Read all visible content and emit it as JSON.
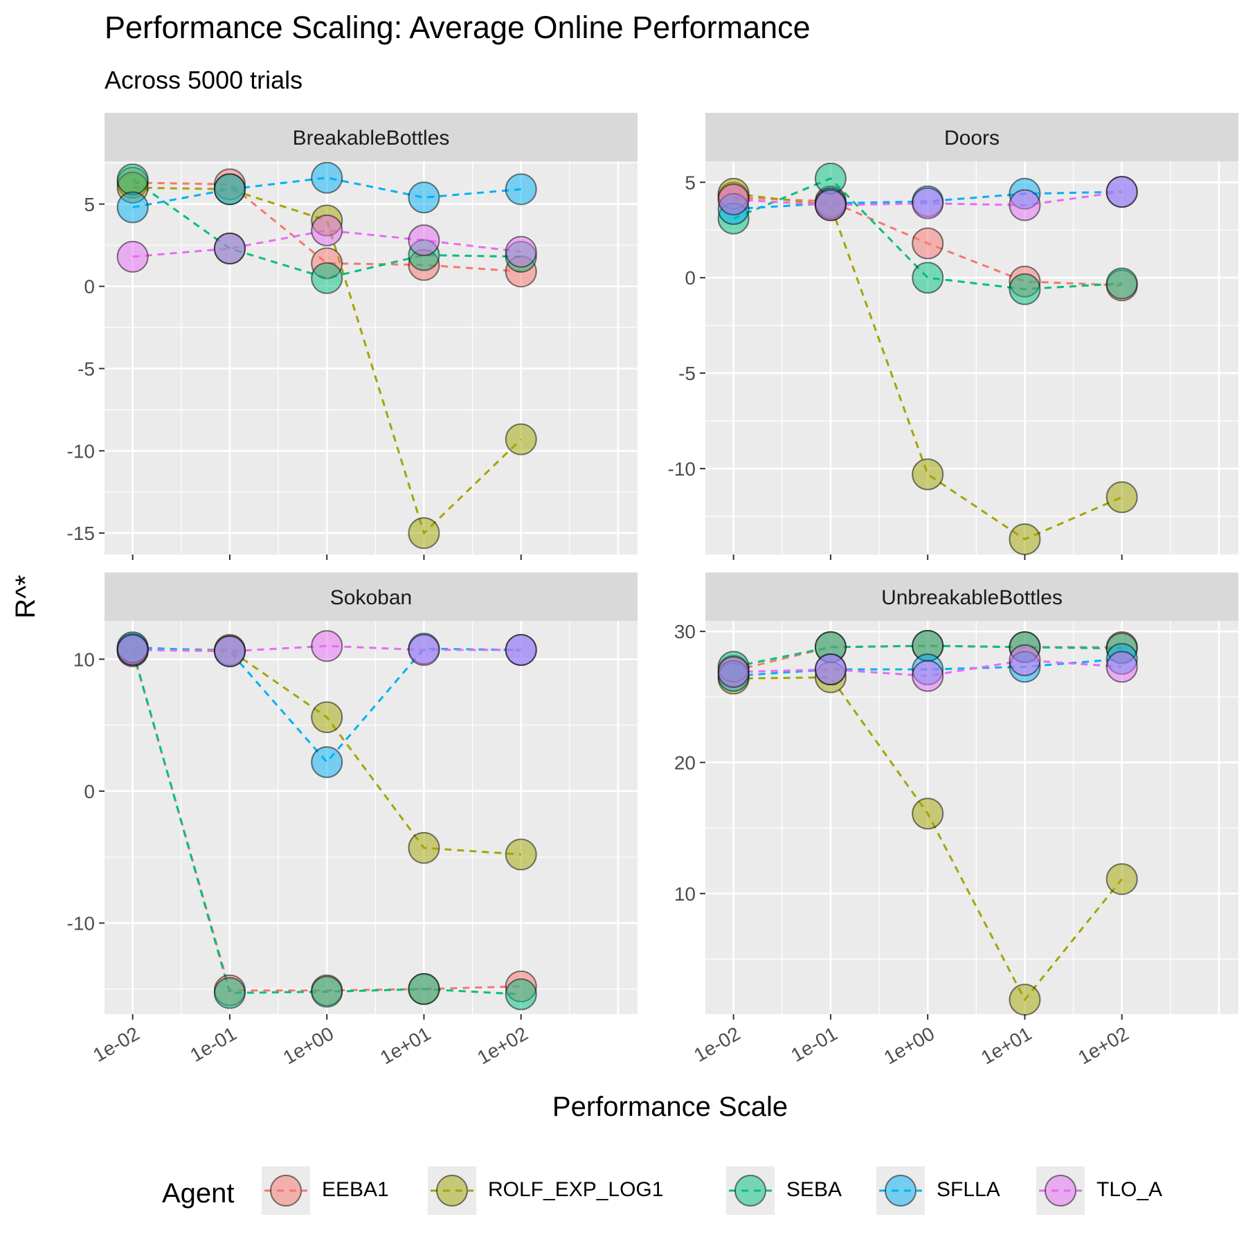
{
  "chart_data": {
    "type": "line",
    "title": "Performance Scaling: Average Online Performance",
    "subtitle": "Across 5000 trials",
    "xlabel": "Performance Scale",
    "ylabel": "R^*",
    "x_scale": "log10",
    "x": [
      0.01,
      0.1,
      1,
      10,
      100
    ],
    "x_tick_labels": [
      "1e-02",
      "1e-01",
      "1e+00",
      "1e+01",
      "1e+02"
    ],
    "legend": {
      "title": "Agent",
      "position": "bottom"
    },
    "grid": true,
    "agents": [
      {
        "name": "EEBA1",
        "color": "#F8766D"
      },
      {
        "name": "ROLF_EXP_LOG1",
        "color": "#A3A500"
      },
      {
        "name": "SEBA",
        "color": "#00BF7D"
      },
      {
        "name": "SFLLA",
        "color": "#00B0F6"
      },
      {
        "name": "TLO_A",
        "color": "#E76BF3"
      }
    ],
    "panels": [
      {
        "name": "BreakableBottles",
        "ylim": [
          -16.3,
          7.6
        ],
        "yticks": [
          5,
          0,
          -5,
          -10,
          -15
        ],
        "ytick_labels": [
          "5",
          "0",
          "-5",
          "-10",
          "-15"
        ],
        "series": [
          {
            "name": "EEBA1",
            "values": [
              6.3,
              6.2,
              1.4,
              1.3,
              0.9
            ]
          },
          {
            "name": "ROLF_EXP_LOG1",
            "values": [
              6.0,
              5.9,
              4.0,
              -15.0,
              -9.3
            ]
          },
          {
            "name": "SEBA",
            "values": [
              6.5,
              2.3,
              0.5,
              1.9,
              1.8
            ]
          },
          {
            "name": "SFLLA",
            "values": [
              4.8,
              5.9,
              6.6,
              5.4,
              5.9
            ]
          },
          {
            "name": "TLO_A",
            "values": [
              1.8,
              2.3,
              3.4,
              2.8,
              2.1
            ]
          }
        ]
      },
      {
        "name": "Doors",
        "ylim": [
          -14.5,
          6.1
        ],
        "yticks": [
          5,
          0,
          -5,
          -10
        ],
        "ytick_labels": [
          "5",
          "0",
          "-5",
          "-10"
        ],
        "series": [
          {
            "name": "EEBA1",
            "values": [
              4.2,
              4.0,
              1.8,
              -0.2,
              -0.4
            ]
          },
          {
            "name": "ROLF_EXP_LOG1",
            "values": [
              4.4,
              3.8,
              -10.3,
              -13.7,
              -11.5
            ]
          },
          {
            "name": "SEBA",
            "values": [
              3.1,
              5.2,
              0.0,
              -0.6,
              -0.3
            ]
          },
          {
            "name": "SFLLA",
            "values": [
              3.6,
              3.9,
              4.0,
              4.4,
              4.5
            ]
          },
          {
            "name": "TLO_A",
            "values": [
              4.1,
              3.8,
              3.9,
              3.8,
              4.5
            ]
          }
        ]
      },
      {
        "name": "Sokoban",
        "ylim": [
          -16.9,
          12.9
        ],
        "yticks": [
          10,
          0,
          -10
        ],
        "ytick_labels": [
          "10",
          "0",
          "-10"
        ],
        "series": [
          {
            "name": "EEBA1",
            "values": [
              10.6,
              -15.1,
              -15.1,
              -15.0,
              -14.8
            ]
          },
          {
            "name": "ROLF_EXP_LOG1",
            "values": [
              10.8,
              10.7,
              5.6,
              -4.3,
              -4.8
            ]
          },
          {
            "name": "SEBA",
            "values": [
              10.7,
              -15.3,
              -15.2,
              -15.0,
              -15.4
            ]
          },
          {
            "name": "SFLLA",
            "values": [
              10.9,
              10.6,
              2.2,
              10.8,
              10.7
            ]
          },
          {
            "name": "TLO_A",
            "values": [
              10.7,
              10.6,
              11.0,
              10.7,
              10.7
            ]
          }
        ]
      },
      {
        "name": "UnbreakableBottles",
        "ylim": [
          0.8,
          30.8
        ],
        "yticks": [
          30,
          20,
          10
        ],
        "ytick_labels": [
          "30",
          "20",
          "10"
        ],
        "series": [
          {
            "name": "EEBA1",
            "values": [
              27.0,
              28.8,
              28.9,
              28.8,
              28.8
            ]
          },
          {
            "name": "ROLF_EXP_LOG1",
            "values": [
              26.4,
              26.5,
              16.1,
              1.9,
              11.1
            ]
          },
          {
            "name": "SEBA",
            "values": [
              27.3,
              28.8,
              28.9,
              28.8,
              28.7
            ]
          },
          {
            "name": "SFLLA",
            "values": [
              26.6,
              27.1,
              27.1,
              27.3,
              27.9
            ]
          },
          {
            "name": "TLO_A",
            "values": [
              26.9,
              27.1,
              26.6,
              27.8,
              27.3
            ]
          }
        ]
      }
    ]
  }
}
